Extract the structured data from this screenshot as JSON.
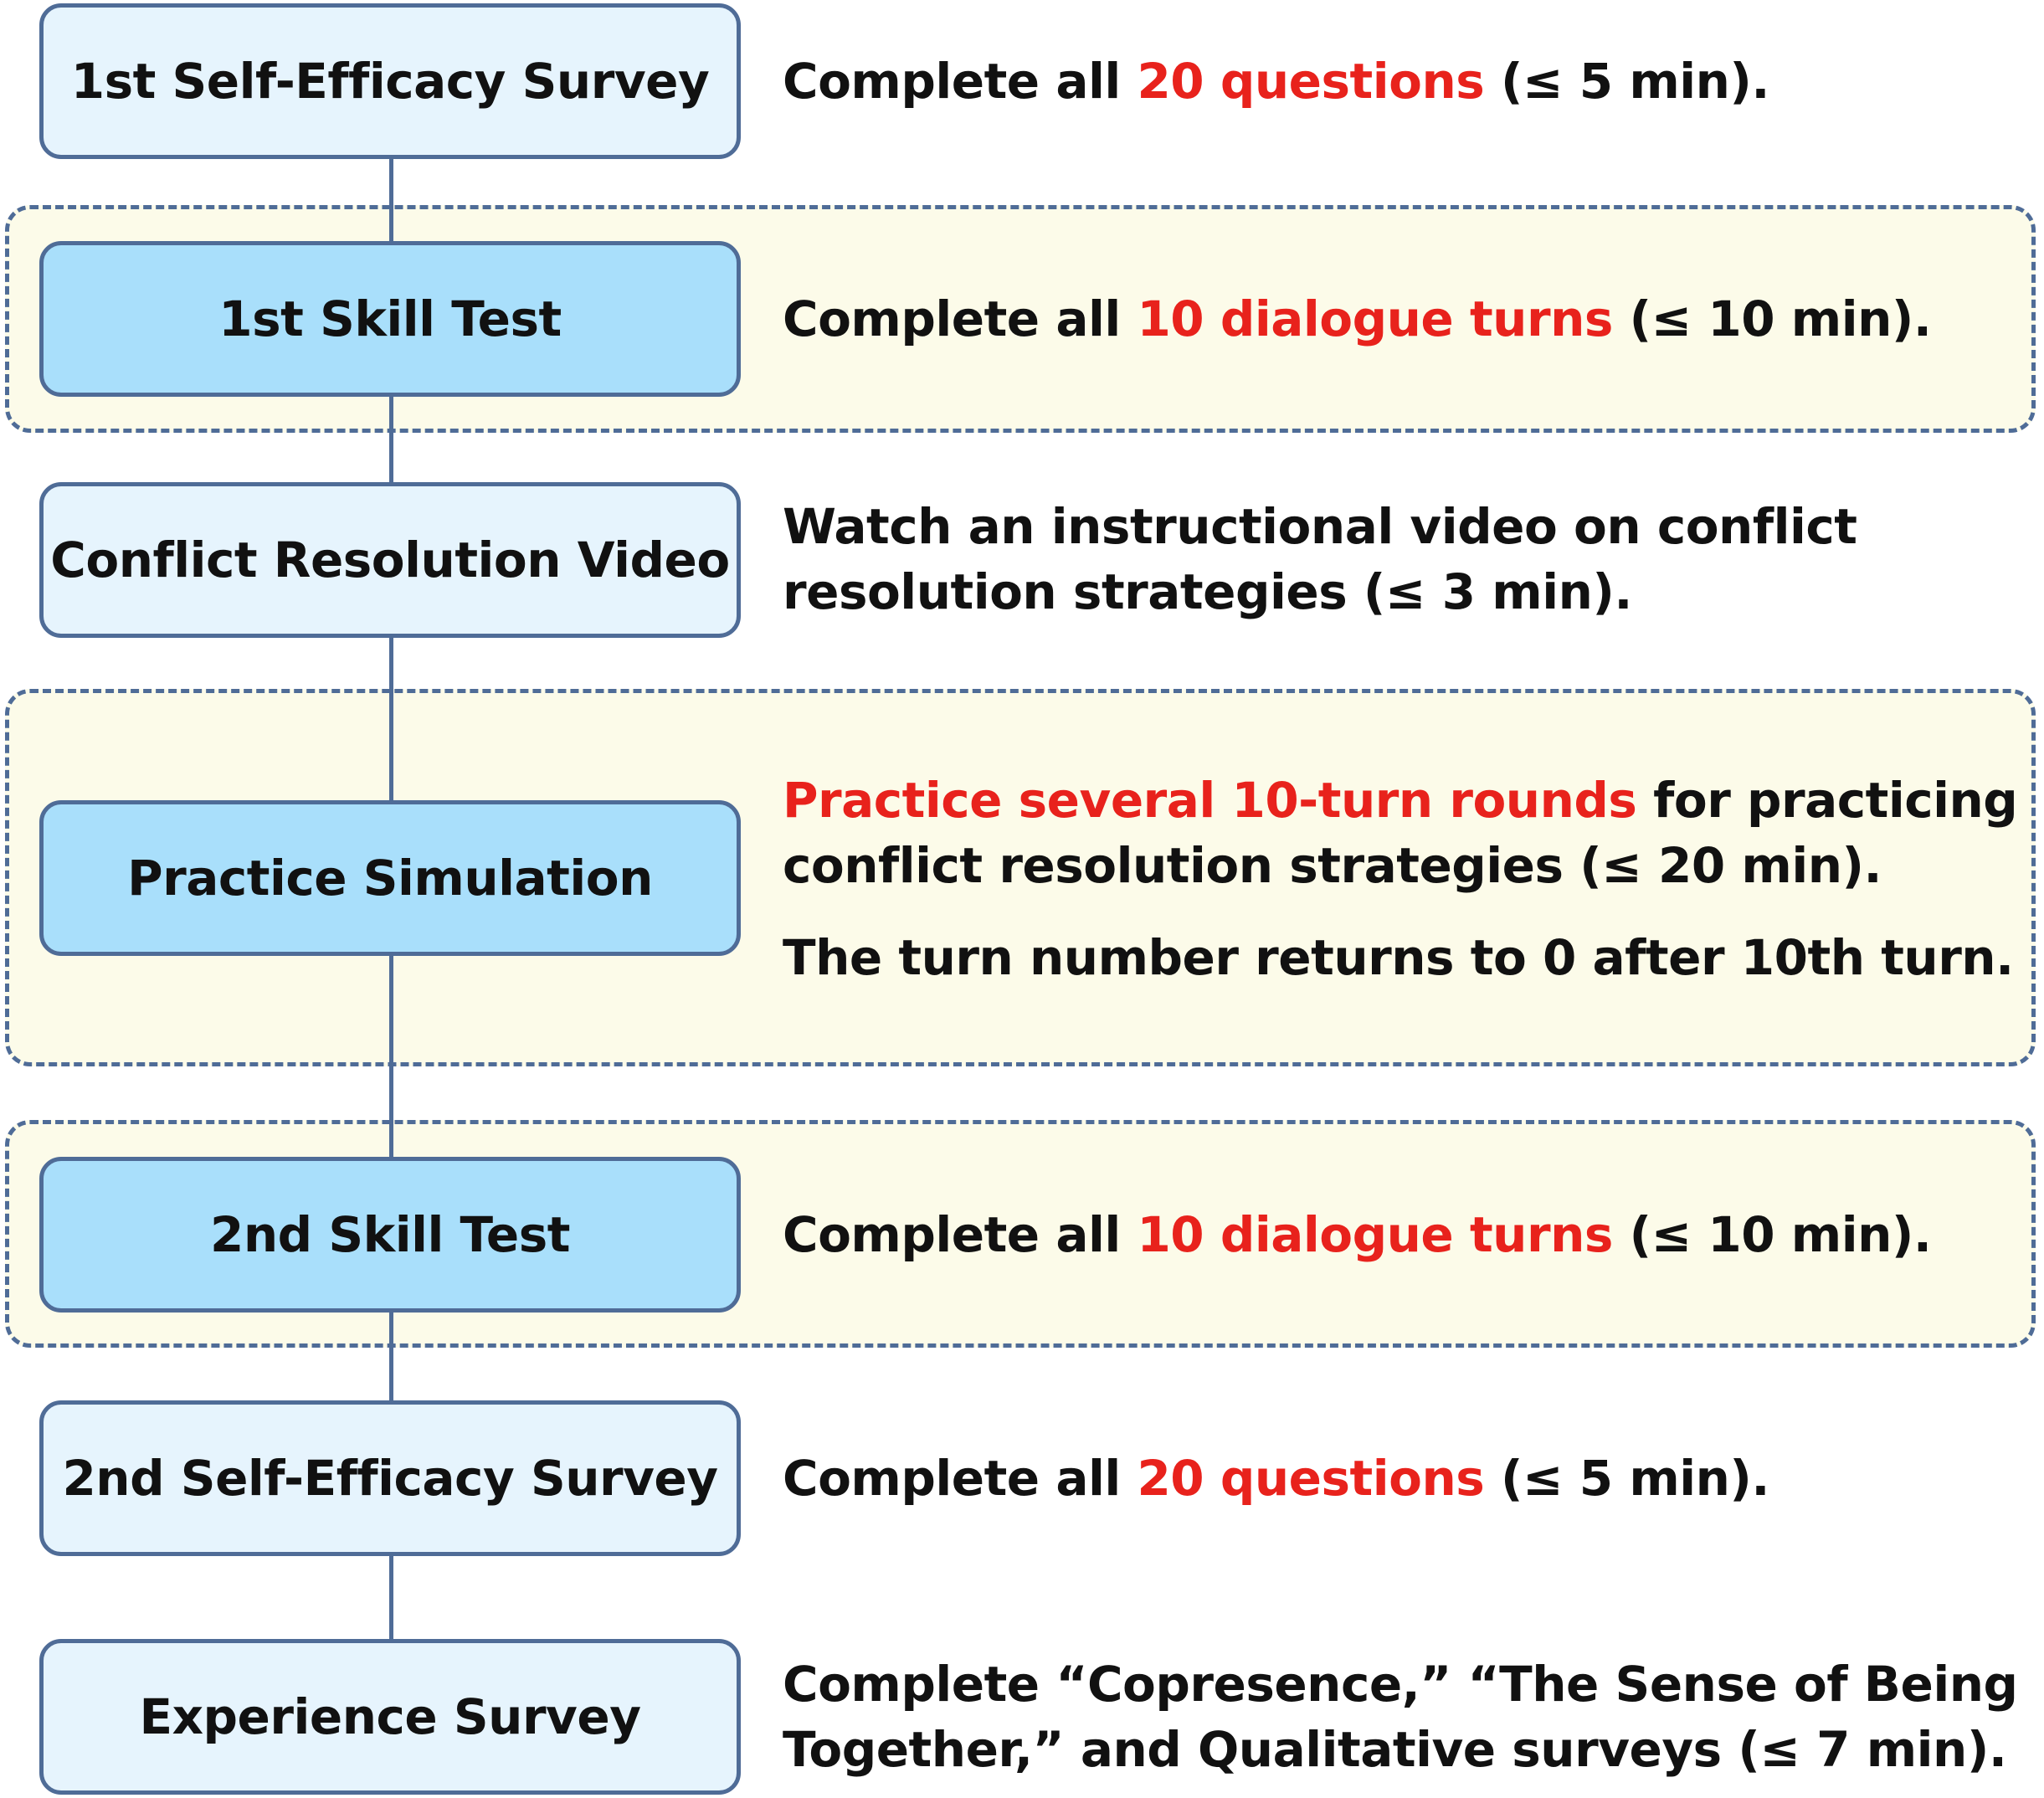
{
  "colors": {
    "highlight": "#e8221c",
    "border": "#4f6c97",
    "step_light_fill": "#e6f4fd",
    "step_strong_fill": "#a9dffb",
    "group_fill": "#fcfbe9",
    "text": "#111111"
  },
  "steps": [
    {
      "label": "1st Self-Efficacy Survey",
      "desc": {
        "pre": "Complete all ",
        "hl": "20 questions",
        "post": " (≤ 5 min)."
      }
    },
    {
      "label": "1st Skill Test",
      "desc": {
        "pre": "Complete all ",
        "hl": "10 dialogue turns",
        "post": " (≤ 10 min)."
      }
    },
    {
      "label": "Conflict Resolution Video",
      "desc": {
        "line1": "Watch an instructional video on conflict",
        "line2": "resolution strategies (≤ 3 min)."
      }
    },
    {
      "label": "Practice Simulation",
      "desc": {
        "hl": "Practice several 10-turn rounds",
        "post1": " for practicing",
        "line2": "conflict resolution strategies (≤ 20 min).",
        "note": "The turn number returns to 0 after 10th turn."
      }
    },
    {
      "label": "2nd Skill Test",
      "desc": {
        "pre": "Complete all ",
        "hl": "10 dialogue turns",
        "post": " (≤ 10 min)."
      }
    },
    {
      "label": "2nd Self-Efficacy Survey",
      "desc": {
        "pre": "Complete all ",
        "hl": "20 questions",
        "post": " (≤ 5 min)."
      }
    },
    {
      "label": "Experience Survey",
      "desc": {
        "line1": "Complete “Copresence,” “The Sense of Being",
        "line2": "Together,” and Qualitative surveys (≤ 7 min)."
      }
    }
  ]
}
